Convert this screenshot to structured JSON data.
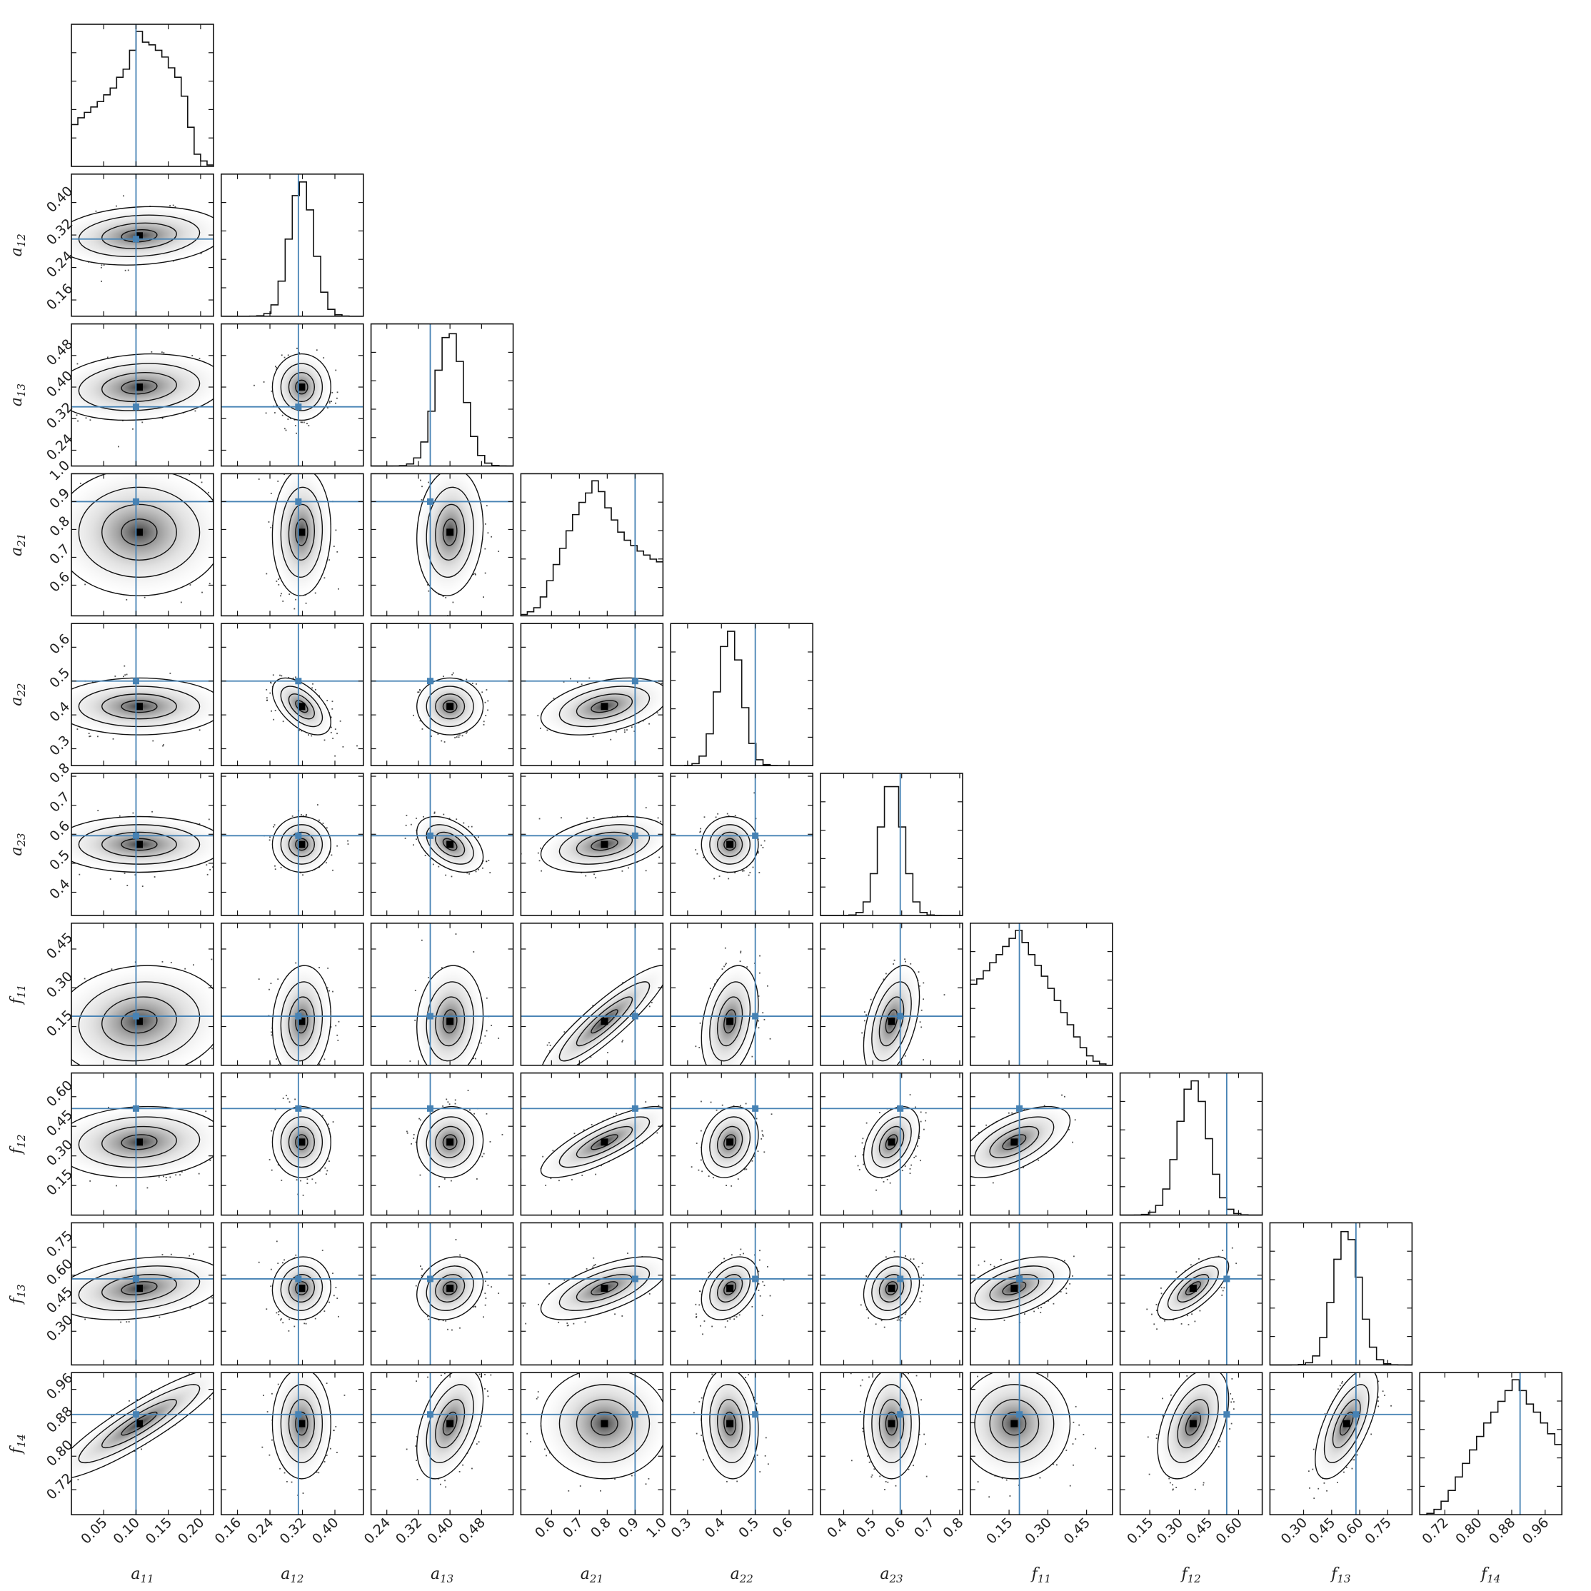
{
  "chart_data": {
    "type": "corner",
    "title": "",
    "parameters": [
      {
        "sym": "a",
        "sub": "11",
        "range": [
          0.0,
          0.22
        ],
        "ticks": [
          "0.05",
          "0.10",
          "0.15",
          "0.20"
        ],
        "truth": 0.1,
        "peak": 0.105,
        "sd": 0.055,
        "hist": [
          0.31,
          0.36,
          0.4,
          0.44,
          0.48,
          0.53,
          0.58,
          0.66,
          0.72,
          0.86,
          1.0,
          0.92,
          0.9,
          0.86,
          0.81,
          0.73,
          0.66,
          0.52,
          0.29,
          0.09,
          0.04,
          0.01
        ]
      },
      {
        "sym": "a",
        "sub": "12",
        "range": [
          0.12,
          0.47
        ],
        "ticks": [
          "0.16",
          "0.24",
          "0.32",
          "0.40"
        ],
        "truth": 0.31,
        "peak": 0.318,
        "sd": 0.03,
        "hist": []
      },
      {
        "sym": "a",
        "sub": "13",
        "range": [
          0.2,
          0.56
        ],
        "ticks": [
          "0.24",
          "0.32",
          "0.40",
          "0.48"
        ],
        "truth": 0.35,
        "peak": 0.4,
        "sd": 0.035,
        "hist": []
      },
      {
        "sym": "a",
        "sub": "21",
        "range": [
          0.49,
          1.0
        ],
        "ticks": [
          "0.6",
          "0.7",
          "0.8",
          "0.9",
          "1.0"
        ],
        "truth": 0.9,
        "peak": 0.79,
        "sd": 0.095,
        "hist": [
          0.01,
          0.03,
          0.06,
          0.14,
          0.26,
          0.38,
          0.5,
          0.63,
          0.75,
          0.84,
          0.91,
          1.0,
          0.92,
          0.8,
          0.71,
          0.62,
          0.56,
          0.52,
          0.48,
          0.45,
          0.42,
          0.4
        ]
      },
      {
        "sym": "a",
        "sub": "22",
        "range": [
          0.25,
          0.67
        ],
        "ticks": [
          "0.3",
          "0.4",
          "0.5",
          "0.6"
        ],
        "truth": 0.5,
        "peak": 0.425,
        "sd": 0.035,
        "hist": []
      },
      {
        "sym": "a",
        "sub": "23",
        "range": [
          0.32,
          0.81
        ],
        "ticks": [
          "0.4",
          "0.5",
          "0.6",
          "0.7",
          "0.8"
        ],
        "truth": 0.595,
        "peak": 0.565,
        "sd": 0.04,
        "hist": []
      },
      {
        "sym": "f",
        "sub": "11",
        "range": [
          0.0,
          0.55
        ],
        "ticks": [
          "0.15",
          "0.30",
          "0.45"
        ],
        "truth": 0.19,
        "peak": 0.17,
        "sd": 0.09,
        "hist": [
          0.6,
          0.64,
          0.7,
          0.76,
          0.82,
          0.88,
          0.94,
          1.0,
          0.91,
          0.82,
          0.74,
          0.66,
          0.57,
          0.48,
          0.39,
          0.3,
          0.21,
          0.13,
          0.07,
          0.03,
          0.01,
          0.0
        ]
      },
      {
        "sym": "f",
        "sub": "12",
        "range": [
          0.0,
          0.72
        ],
        "ticks": [
          "0.15",
          "0.30",
          "0.45",
          "0.60"
        ],
        "truth": 0.54,
        "peak": 0.37,
        "sd": 0.075,
        "hist": []
      },
      {
        "sym": "f",
        "sub": "13",
        "range": [
          0.12,
          0.88
        ],
        "ticks": [
          "0.30",
          "0.45",
          "0.60",
          "0.75"
        ],
        "truth": 0.58,
        "peak": 0.53,
        "sd": 0.07,
        "hist": []
      },
      {
        "sym": "f",
        "sub": "14",
        "range": [
          0.66,
          1.0
        ],
        "ticks": [
          "0.72",
          "0.80",
          "0.88",
          "0.96"
        ],
        "truth": 0.9,
        "peak": 0.878,
        "sd": 0.055,
        "hist": [
          0.0,
          0.01,
          0.04,
          0.1,
          0.18,
          0.28,
          0.38,
          0.48,
          0.58,
          0.68,
          0.76,
          0.84,
          0.92,
          1.0,
          0.92,
          0.82,
          0.76,
          0.68,
          0.6,
          0.52
        ]
      }
    ],
    "truth_color": "#4682b4",
    "grid": false,
    "legend": "none",
    "correlations": [
      [
        0,
        1,
        0.15
      ],
      [
        0,
        2,
        0.15
      ],
      [
        1,
        2,
        0.0
      ],
      [
        0,
        3,
        0.0
      ],
      [
        1,
        3,
        0.05
      ],
      [
        2,
        3,
        0.1
      ],
      [
        0,
        4,
        0.0
      ],
      [
        1,
        4,
        -0.55
      ],
      [
        2,
        4,
        0.0
      ],
      [
        3,
        4,
        0.4
      ],
      [
        0,
        5,
        0.0
      ],
      [
        1,
        5,
        0.0
      ],
      [
        2,
        5,
        -0.45
      ],
      [
        3,
        5,
        0.35
      ],
      [
        4,
        5,
        0.0
      ],
      [
        0,
        6,
        0.1
      ],
      [
        1,
        6,
        0.1
      ],
      [
        2,
        6,
        0.1
      ],
      [
        3,
        6,
        0.9
      ],
      [
        4,
        6,
        0.3
      ],
      [
        5,
        6,
        0.45
      ],
      [
        0,
        7,
        0.1
      ],
      [
        1,
        7,
        0.0
      ],
      [
        2,
        7,
        0.05
      ],
      [
        3,
        7,
        0.8
      ],
      [
        4,
        7,
        0.2
      ],
      [
        5,
        7,
        0.4
      ],
      [
        6,
        7,
        0.6
      ],
      [
        0,
        8,
        0.3
      ],
      [
        1,
        8,
        0.05
      ],
      [
        2,
        8,
        0.2
      ],
      [
        3,
        8,
        0.65
      ],
      [
        4,
        8,
        0.35
      ],
      [
        5,
        8,
        0.2
      ],
      [
        6,
        8,
        0.5
      ],
      [
        7,
        8,
        0.7
      ],
      [
        0,
        9,
        0.9
      ],
      [
        1,
        9,
        0.0
      ],
      [
        2,
        9,
        0.45
      ],
      [
        3,
        9,
        0.0
      ],
      [
        4,
        9,
        -0.1
      ],
      [
        5,
        9,
        0.0
      ],
      [
        6,
        9,
        0.0
      ],
      [
        7,
        9,
        0.45
      ],
      [
        8,
        9,
        0.65
      ]
    ]
  }
}
